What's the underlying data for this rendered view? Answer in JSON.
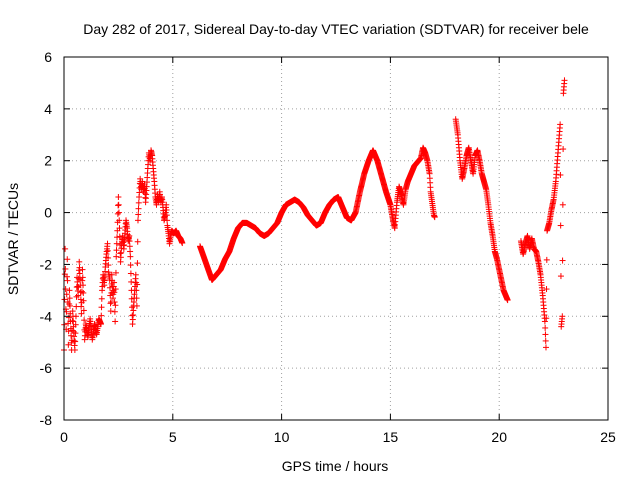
{
  "chart_data": {
    "type": "scatter",
    "title": "Day 282 of 2017, Sidereal Day-to-day VTEC variation (SDTVAR) for receiver bele",
    "xlabel": "GPS time / hours",
    "ylabel": "SDTVAR / TECUs",
    "xlim": [
      0,
      25
    ],
    "ylim": [
      -8,
      6
    ],
    "xticks": [
      0,
      5,
      10,
      15,
      20,
      25
    ],
    "yticks": [
      -8,
      -6,
      -4,
      -2,
      0,
      2,
      4,
      6
    ],
    "xtick_labels": [
      "0",
      "5",
      "10",
      "15",
      "20",
      "25"
    ],
    "ytick_labels": [
      "-8",
      "-6",
      "-4",
      "-2",
      "0",
      "2",
      "4",
      "6"
    ],
    "grid": true,
    "marker": "plus",
    "color": "#ff0000",
    "series_path": [
      [
        0.0,
        -5.3
      ],
      [
        0.05,
        -1.4
      ],
      [
        0.1,
        -4.5
      ],
      [
        0.15,
        -1.8
      ],
      [
        0.2,
        -5.1
      ],
      [
        0.25,
        -3.0
      ],
      [
        0.3,
        -4.2
      ],
      [
        0.35,
        -5.3
      ],
      [
        0.4,
        -3.8
      ],
      [
        0.45,
        -4.6
      ],
      [
        0.5,
        -5.3
      ],
      [
        0.55,
        -4.0
      ],
      [
        0.6,
        -2.5
      ],
      [
        0.65,
        -3.2
      ],
      [
        0.7,
        -1.9
      ],
      [
        0.75,
        -2.8
      ],
      [
        0.8,
        -3.9
      ],
      [
        0.85,
        -2.2
      ],
      [
        0.9,
        -3.4
      ],
      [
        0.95,
        -4.9
      ],
      [
        1.0,
        -4.3
      ],
      [
        1.1,
        -4.8
      ],
      [
        1.2,
        -4.1
      ],
      [
        1.3,
        -4.9
      ],
      [
        1.4,
        -4.3
      ],
      [
        1.5,
        -4.7
      ],
      [
        1.6,
        -4.1
      ],
      [
        1.7,
        -4.3
      ],
      [
        1.75,
        -3.0
      ],
      [
        1.8,
        -2.4
      ],
      [
        1.85,
        -2.8
      ],
      [
        1.9,
        -2.1
      ],
      [
        1.95,
        -1.6
      ],
      [
        2.0,
        -1.2
      ],
      [
        2.05,
        -2.3
      ],
      [
        2.1,
        -2.6
      ],
      [
        2.15,
        -3.8
      ],
      [
        2.2,
        -2.4
      ],
      [
        2.25,
        -3.3
      ],
      [
        2.3,
        -2.7
      ],
      [
        2.35,
        -4.2
      ],
      [
        2.4,
        -1.7
      ],
      [
        2.45,
        -0.7
      ],
      [
        2.5,
        0.6
      ],
      [
        2.55,
        -0.6
      ],
      [
        2.6,
        -1.9
      ],
      [
        2.65,
        -1.2
      ],
      [
        2.7,
        -0.9
      ],
      [
        2.75,
        -1.4
      ],
      [
        2.8,
        -0.8
      ],
      [
        2.85,
        -0.3
      ],
      [
        2.9,
        -0.6
      ],
      [
        2.95,
        -1.1
      ],
      [
        3.0,
        -0.9
      ],
      [
        3.05,
        -1.7
      ],
      [
        3.1,
        -3.0
      ],
      [
        3.15,
        -4.3
      ],
      [
        3.2,
        -3.6
      ],
      [
        3.25,
        -3.0
      ],
      [
        3.3,
        -2.4
      ],
      [
        3.35,
        -3.6
      ],
      [
        3.4,
        -0.3
      ],
      [
        3.45,
        0.6
      ],
      [
        3.5,
        1.3
      ],
      [
        3.55,
        0.9
      ],
      [
        3.6,
        1.2
      ],
      [
        3.65,
        0.8
      ],
      [
        3.7,
        1.1
      ],
      [
        3.75,
        0.4
      ],
      [
        3.8,
        1.0
      ],
      [
        3.85,
        1.7
      ],
      [
        3.9,
        2.3
      ],
      [
        3.95,
        2.0
      ],
      [
        4.0,
        2.4
      ],
      [
        4.05,
        2.2
      ],
      [
        4.1,
        1.7
      ],
      [
        4.15,
        1.2
      ],
      [
        4.2,
        0.6
      ],
      [
        4.25,
        0.3
      ],
      [
        4.3,
        0.7
      ],
      [
        4.35,
        0.4
      ],
      [
        4.4,
        0.8
      ],
      [
        4.45,
        0.4
      ],
      [
        4.5,
        0.6
      ],
      [
        4.55,
        0.2
      ],
      [
        4.6,
        -0.3
      ],
      [
        4.65,
        -0.1
      ],
      [
        4.7,
        0.3
      ],
      [
        4.75,
        -0.5
      ],
      [
        4.8,
        -0.8
      ],
      [
        4.85,
        -1.2
      ],
      [
        4.9,
        -0.9
      ],
      [
        4.95,
        -0.7
      ],
      [
        5.05,
        -0.8
      ],
      [
        5.15,
        -0.7
      ],
      [
        5.25,
        -0.9
      ],
      [
        5.35,
        -1.0
      ],
      [
        5.45,
        -1.2
      ],
      [
        6.25,
        -1.3
      ],
      [
        6.8,
        -2.6
      ],
      [
        7.0,
        -2.4
      ],
      [
        7.2,
        -2.2
      ],
      [
        7.4,
        -1.8
      ],
      [
        7.6,
        -1.5
      ],
      [
        7.8,
        -1.0
      ],
      [
        8.0,
        -0.6
      ],
      [
        8.2,
        -0.4
      ],
      [
        8.4,
        -0.4
      ],
      [
        8.6,
        -0.5
      ],
      [
        8.8,
        -0.6
      ],
      [
        9.0,
        -0.8
      ],
      [
        9.2,
        -0.9
      ],
      [
        9.4,
        -0.8
      ],
      [
        9.6,
        -0.6
      ],
      [
        9.8,
        -0.4
      ],
      [
        10.0,
        0.0
      ],
      [
        10.2,
        0.3
      ],
      [
        10.4,
        0.4
      ],
      [
        10.6,
        0.5
      ],
      [
        10.8,
        0.4
      ],
      [
        11.0,
        0.2
      ],
      [
        11.2,
        -0.1
      ],
      [
        11.4,
        -0.3
      ],
      [
        11.6,
        -0.5
      ],
      [
        11.8,
        -0.4
      ],
      [
        12.0,
        0.0
      ],
      [
        12.2,
        0.3
      ],
      [
        12.4,
        0.5
      ],
      [
        12.6,
        0.6
      ],
      [
        12.8,
        0.2
      ],
      [
        13.0,
        -0.2
      ],
      [
        13.2,
        -0.3
      ],
      [
        13.4,
        0.0
      ],
      [
        13.6,
        0.8
      ],
      [
        13.8,
        1.5
      ],
      [
        14.0,
        2.0
      ],
      [
        14.2,
        2.4
      ],
      [
        14.4,
        2.0
      ],
      [
        14.6,
        1.4
      ],
      [
        14.8,
        0.8
      ],
      [
        15.0,
        0.3
      ],
      [
        15.1,
        -0.2
      ],
      [
        15.2,
        -0.6
      ],
      [
        15.3,
        0.4
      ],
      [
        15.4,
        1.0
      ],
      [
        15.5,
        0.7
      ],
      [
        15.6,
        0.3
      ],
      [
        15.7,
        0.9
      ],
      [
        15.8,
        1.2
      ],
      [
        15.9,
        1.4
      ],
      [
        16.0,
        1.6
      ],
      [
        16.1,
        1.8
      ],
      [
        16.2,
        1.9
      ],
      [
        16.3,
        2.0
      ],
      [
        16.4,
        2.1
      ],
      [
        16.5,
        2.5
      ],
      [
        16.6,
        2.3
      ],
      [
        16.7,
        2.0
      ],
      [
        16.8,
        1.5
      ],
      [
        16.85,
        0.8
      ],
      [
        16.9,
        0.5
      ],
      [
        16.95,
        0.2
      ],
      [
        17.0,
        -0.1
      ],
      [
        17.05,
        -0.2
      ],
      [
        18.0,
        3.6
      ],
      [
        18.1,
        3.0
      ],
      [
        18.2,
        2.0
      ],
      [
        18.3,
        1.3
      ],
      [
        18.4,
        1.7
      ],
      [
        18.5,
        2.2
      ],
      [
        18.6,
        2.5
      ],
      [
        18.7,
        2.0
      ],
      [
        18.8,
        1.5
      ],
      [
        18.9,
        2.2
      ],
      [
        19.0,
        2.4
      ],
      [
        19.1,
        2.0
      ],
      [
        19.2,
        1.5
      ],
      [
        19.3,
        1.2
      ],
      [
        19.4,
        0.9
      ],
      [
        19.5,
        0.3
      ],
      [
        19.6,
        -0.4
      ],
      [
        19.7,
        -0.9
      ],
      [
        19.8,
        -1.5
      ],
      [
        19.9,
        -1.8
      ],
      [
        20.0,
        -2.2
      ],
      [
        20.1,
        -2.6
      ],
      [
        20.2,
        -3.0
      ],
      [
        20.3,
        -3.2
      ],
      [
        20.4,
        -3.4
      ],
      [
        21.0,
        -1.1
      ],
      [
        21.1,
        -1.6
      ],
      [
        21.2,
        -1.2
      ],
      [
        21.3,
        -0.9
      ],
      [
        21.4,
        -1.4
      ],
      [
        21.5,
        -1.0
      ],
      [
        21.6,
        -1.4
      ],
      [
        21.7,
        -1.5
      ],
      [
        21.8,
        -1.9
      ],
      [
        21.9,
        -2.4
      ],
      [
        22.0,
        -3.2
      ],
      [
        22.1,
        -4.2
      ],
      [
        22.15,
        -5.2
      ],
      [
        22.2,
        -0.7
      ],
      [
        22.3,
        -0.4
      ],
      [
        22.4,
        0.1
      ],
      [
        22.5,
        0.5
      ],
      [
        22.6,
        1.2
      ],
      [
        22.7,
        2.3
      ],
      [
        22.8,
        3.4
      ],
      [
        22.85,
        -4.4
      ],
      [
        22.9,
        -4.0
      ],
      [
        22.95,
        4.6
      ],
      [
        23.0,
        5.1
      ]
    ]
  }
}
